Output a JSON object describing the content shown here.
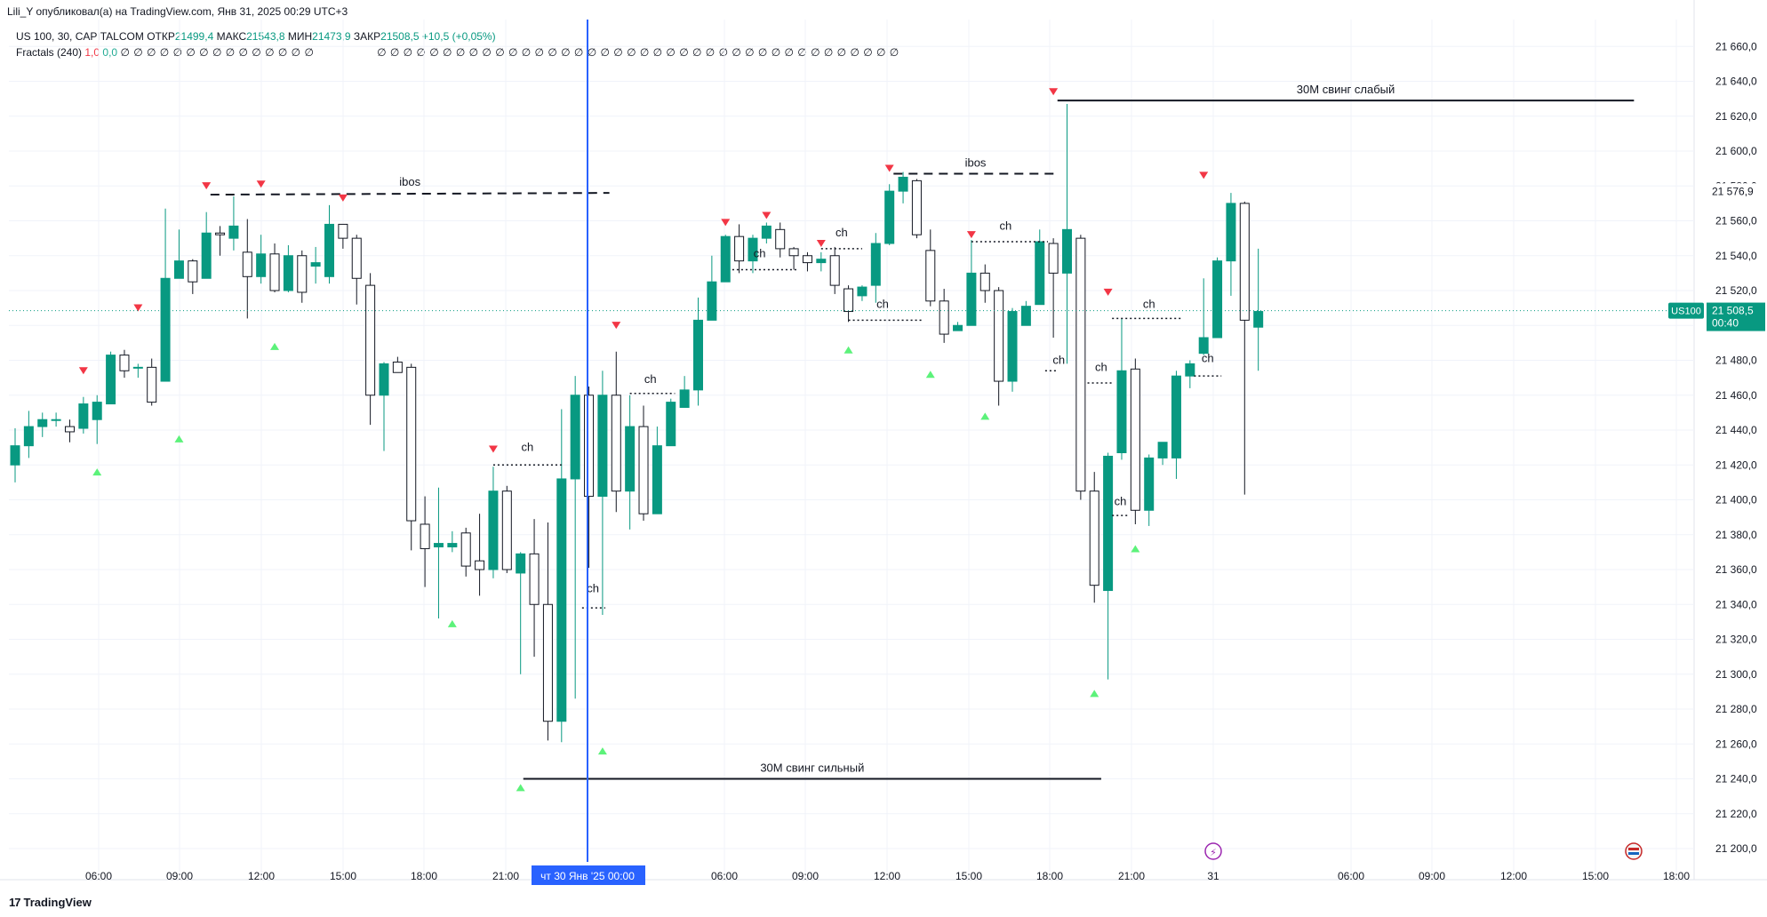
{
  "header": {
    "published_text": "Lili_Y опубликовал(а) на TradingView.com, Янв 31, 2025 00:29 UTC+3"
  },
  "legend": {
    "symbol": "US 100, 30, CAPITALCOM",
    "open_label": "ОТКР",
    "open_value": "21499,4",
    "high_label": "МАКС",
    "high_value": "21543,8",
    "low_label": "МИН",
    "low_value": "21473,9",
    "close_label": "ЗАКР",
    "close_value": "21508,5",
    "change": "+10,5 (+0,05%)",
    "indicator_name": "Fractals (240)",
    "indicator_v1": "1,0",
    "indicator_v2": "0,0",
    "zeros_a": "∅ ∅ ∅ ∅ ∅ ∅ ∅ ∅ ∅ ∅ ∅ ∅ ∅ ∅ ∅",
    "zeros_b": "∅ ∅ ∅ ∅ ∅ ∅ ∅ ∅ ∅ ∅ ∅ ∅ ∅ ∅ ∅ ∅ ∅ ∅ ∅ ∅ ∅ ∅ ∅ ∅ ∅ ∅ ∅ ∅ ∅ ∅ ∅ ∅ ∅ ∅ ∅ ∅ ∅ ∅ ∅ ∅"
  },
  "colors": {
    "up": "#089981",
    "down_fill": "#ffffff",
    "down_stroke": "#131722",
    "fractal_up": "#5cf27a",
    "fractal_down": "#f23645",
    "crosshair": "#2962ff",
    "price_tag": "#089981"
  },
  "chart_data": {
    "type": "candlestick",
    "y_axis": {
      "min": 21190,
      "max": 21670,
      "ticks": [
        "21 200,0",
        "21 220,0",
        "21 240,0",
        "21 260,0",
        "21 280,0",
        "21 300,0",
        "21 320,0",
        "21 340,0",
        "21 360,0",
        "21 380,0",
        "21 400,0",
        "21 420,0",
        "21 440,0",
        "21 460,0",
        "21 480,0",
        "21 500,0",
        "21 520,0",
        "21 540,0",
        "21 560,0",
        "21 580,0",
        "21 600,0",
        "21 620,0",
        "21 640,0",
        "21 660,0"
      ]
    },
    "x_axis": {
      "ticks": [
        "06:00",
        "09:00",
        "12:00",
        "15:00",
        "18:00",
        "21:00",
        "",
        "06:00",
        "09:00",
        "12:00",
        "15:00",
        "18:00",
        "21:00",
        "31",
        "06:00",
        "09:00",
        "12:00",
        "15:00",
        "18:00"
      ],
      "crosshair_label": "чт 30 Янв '25   00:00"
    },
    "price_label": {
      "symbol": "US100",
      "price": "21 508,5",
      "countdown": "00:40",
      "value": 21508.5
    },
    "hover_price_label": "21 576,9",
    "candles": [
      [
        21420,
        21431,
        21410,
        21441
      ],
      [
        21431,
        21442,
        21424,
        21451
      ],
      [
        21442,
        21446,
        21436,
        21450
      ],
      [
        21446,
        21446,
        21442,
        21450
      ],
      [
        21442,
        21439,
        21433,
        21446
      ],
      [
        21441,
        21455,
        21438,
        21459
      ],
      [
        21446,
        21456,
        21432,
        21460
      ],
      [
        21455,
        21483,
        21455,
        21485
      ],
      [
        21483,
        21474,
        21470,
        21486
      ],
      [
        21476,
        21476,
        21470,
        21478
      ],
      [
        21476,
        21456,
        21454,
        21481
      ],
      [
        21468,
        21527,
        21468,
        21567
      ],
      [
        21527,
        21537,
        21527,
        21555
      ],
      [
        21537,
        21525,
        21518,
        21538
      ],
      [
        21527,
        21553,
        21527,
        21565
      ],
      [
        21553,
        21552,
        21540,
        21557
      ],
      [
        21550,
        21557,
        21543,
        21574
      ],
      [
        21542,
        21528,
        21504,
        21561
      ],
      [
        21528,
        21541,
        21524,
        21552
      ],
      [
        21541,
        21520,
        21519,
        21547
      ],
      [
        21520,
        21540,
        21519,
        21546
      ],
      [
        21540,
        21519,
        21513,
        21543
      ],
      [
        21534,
        21536,
        21524,
        21545
      ],
      [
        21528,
        21558,
        21524,
        21569
      ],
      [
        21558,
        21550,
        21544,
        21558
      ],
      [
        21550,
        21527,
        21512,
        21552
      ],
      [
        21523,
        21460,
        21443,
        21530
      ],
      [
        21460,
        21478,
        21428,
        21479
      ],
      [
        21479,
        21473,
        21473,
        21482
      ],
      [
        21476,
        21388,
        21371,
        21478
      ],
      [
        21386,
        21372,
        21350,
        21402
      ],
      [
        21373,
        21375,
        21332,
        21407
      ],
      [
        21373,
        21375,
        21370,
        21382
      ],
      [
        21381,
        21362,
        21356,
        21384
      ],
      [
        21365,
        21360,
        21345,
        21392
      ],
      [
        21360,
        21405,
        21355,
        21419
      ],
      [
        21405,
        21360,
        21358,
        21408
      ],
      [
        21358,
        21369,
        21300,
        21370
      ],
      [
        21369,
        21340,
        21310,
        21389
      ],
      [
        21340,
        21273,
        21262,
        21387
      ],
      [
        21273,
        21412,
        21261,
        21452
      ],
      [
        21412,
        21460,
        21286,
        21471
      ],
      [
        21460,
        21402,
        21361,
        21465
      ],
      [
        21402,
        21460,
        21334,
        21474
      ],
      [
        21460,
        21405,
        21393,
        21485
      ],
      [
        21405,
        21442,
        21383,
        21460
      ],
      [
        21442,
        21392,
        21388,
        21454
      ],
      [
        21392,
        21431,
        21393,
        21442
      ],
      [
        21431,
        21456,
        21431,
        21458
      ],
      [
        21453,
        21463,
        21453,
        21471
      ],
      [
        21463,
        21503,
        21454,
        21516
      ],
      [
        21503,
        21525,
        21503,
        21540
      ],
      [
        21525,
        21551,
        21525,
        21552
      ],
      [
        21551,
        21537,
        21530,
        21558
      ],
      [
        21537,
        21550,
        21530,
        21552
      ],
      [
        21550,
        21557,
        21547,
        21559
      ],
      [
        21555,
        21544,
        21539,
        21559
      ],
      [
        21544,
        21540,
        21532,
        21545
      ],
      [
        21540,
        21536,
        21531,
        21542
      ],
      [
        21536,
        21538,
        21531,
        21542
      ],
      [
        21540,
        21523,
        21518,
        21545
      ],
      [
        21521,
        21508,
        21502,
        21523
      ],
      [
        21517,
        21522,
        21514,
        21523
      ],
      [
        21523,
        21547,
        21513,
        21553
      ],
      [
        21547,
        21577,
        21546,
        21581
      ],
      [
        21577,
        21585,
        21570,
        21588
      ],
      [
        21583,
        21552,
        21550,
        21584
      ],
      [
        21543,
        21514,
        21511,
        21555
      ],
      [
        21514,
        21495,
        21490,
        21521
      ],
      [
        21497,
        21500,
        21497,
        21502
      ],
      [
        21500,
        21530,
        21500,
        21549
      ],
      [
        21530,
        21520,
        21513,
        21535
      ],
      [
        21520,
        21468,
        21454,
        21522
      ],
      [
        21468,
        21508,
        21462,
        21510
      ],
      [
        21500,
        21511,
        21503,
        21514
      ],
      [
        21512,
        21548,
        21513,
        21555
      ],
      [
        21547,
        21530,
        21493,
        21550
      ],
      [
        21530,
        21555,
        21478,
        21627
      ],
      [
        21550,
        21405,
        21400,
        21552
      ],
      [
        21405,
        21351,
        21341,
        21416
      ],
      [
        21348,
        21425,
        21297,
        21427
      ],
      [
        21427,
        21474,
        21423,
        21504
      ],
      [
        21475,
        21394,
        21386,
        21481
      ],
      [
        21394,
        21424,
        21385,
        21426
      ],
      [
        21424,
        21433,
        21420,
        21431
      ],
      [
        21424,
        21471,
        21412,
        21474
      ],
      [
        21471,
        21478,
        21464,
        21480
      ],
      [
        21484,
        21493,
        21483,
        21527
      ],
      [
        21493,
        21537,
        21493,
        21539
      ],
      [
        21537,
        21570,
        21517,
        21576
      ],
      [
        21570,
        21503,
        21403,
        21571
      ],
      [
        21499,
        21508,
        21474,
        21544
      ]
    ],
    "fractals_down": [
      [
        5,
        21472
      ],
      [
        9,
        21508
      ],
      [
        14,
        21578
      ],
      [
        18,
        21579
      ],
      [
        24,
        21571
      ],
      [
        35,
        21427
      ],
      [
        44,
        21498
      ],
      [
        52,
        21557
      ],
      [
        55,
        21561
      ],
      [
        59,
        21545
      ],
      [
        64,
        21588
      ],
      [
        70,
        21550
      ],
      [
        76,
        21632
      ],
      [
        80,
        21517
      ],
      [
        87,
        21584
      ]
    ],
    "fractals_up": [
      [
        6,
        21418
      ],
      [
        12,
        21437
      ],
      [
        19,
        21490
      ],
      [
        32,
        21331
      ],
      [
        37,
        21237
      ],
      [
        43,
        21258
      ],
      [
        61,
        21488
      ],
      [
        67,
        21474
      ],
      [
        71,
        21450
      ],
      [
        79,
        21291
      ],
      [
        82,
        21374
      ]
    ],
    "annotations": [
      {
        "type": "dashed",
        "label": "ibos",
        "i1": 14.3,
        "i2": 43.5,
        "y1": 21575,
        "y2": 21576
      },
      {
        "type": "dashed",
        "label": "ibos",
        "i1": 64.3,
        "i2": 76.3,
        "y1": 21587,
        "y2": 21587
      },
      {
        "type": "solid",
        "label": "30M свинг слабый",
        "i1": 76.3,
        "i2": 118.5,
        "y1": 21629,
        "y2": 21629
      },
      {
        "type": "solid",
        "label": "30M свинг сильный",
        "i1": 37.2,
        "i2": 79.5,
        "y1": 21240,
        "y2": 21240
      },
      {
        "type": "dotted",
        "label": "ch",
        "i1": 35,
        "i2": 40,
        "y1": 21420,
        "y2": 21420,
        "lx": 37.5,
        "ly": 21428
      },
      {
        "type": "dotted",
        "label": "ch",
        "i1": 41.5,
        "i2": 43.2,
        "y1": 21338,
        "y2": 21338,
        "lx": 42.3,
        "ly": 21347
      },
      {
        "type": "dotted",
        "label": "ch",
        "i1": 45,
        "i2": 48.3,
        "y1": 21461,
        "y2": 21461,
        "lx": 46.5,
        "ly": 21467
      },
      {
        "type": "dotted",
        "label": "ch",
        "i1": 52.5,
        "i2": 57.3,
        "y1": 21532,
        "y2": 21532,
        "lx": 54.5,
        "ly": 21539
      },
      {
        "type": "dotted",
        "label": "ch",
        "i1": 59,
        "i2": 62,
        "y1": 21544,
        "y2": 21544,
        "lx": 60.5,
        "ly": 21551
      },
      {
        "type": "dotted",
        "label": "ch",
        "i1": 61,
        "i2": 66.5,
        "y1": 21503,
        "y2": 21503,
        "lx": 63.5,
        "ly": 21510
      },
      {
        "type": "dotted",
        "label": "ch",
        "i1": 70,
        "i2": 75.6,
        "y1": 21548,
        "y2": 21548,
        "lx": 72.5,
        "ly": 21555
      },
      {
        "type": "dotted",
        "label": "ch",
        "i1": 75.4,
        "i2": 76.3,
        "y1": 21474,
        "y2": 21474,
        "lx": 76.4,
        "ly": 21478
      },
      {
        "type": "dotted",
        "label": "ch",
        "i1": 78.5,
        "i2": 80.3,
        "y1": 21467,
        "y2": 21467,
        "lx": 79.5,
        "ly": 21474
      },
      {
        "type": "dotted",
        "label": "ch",
        "i1": 80.3,
        "i2": 85.5,
        "y1": 21504,
        "y2": 21504,
        "lx": 83,
        "ly": 21510
      },
      {
        "type": "dotted",
        "label": "ch",
        "i1": 80.3,
        "i2": 81.6,
        "y1": 21391,
        "y2": 21391,
        "lx": 80.9,
        "ly": 21397
      },
      {
        "type": "dotted",
        "label": "ch",
        "i1": 86.3,
        "i2": 88.3,
        "y1": 21471,
        "y2": 21471,
        "lx": 87.3,
        "ly": 21479
      }
    ]
  }
}
